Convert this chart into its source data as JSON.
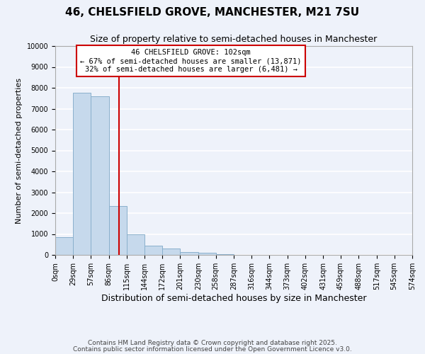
{
  "title": "46, CHELSFIELD GROVE, MANCHESTER, M21 7SU",
  "subtitle": "Size of property relative to semi-detached houses in Manchester",
  "bar_values": [
    850,
    7750,
    7600,
    2350,
    1000,
    450,
    300,
    120,
    100,
    30,
    0,
    0,
    0,
    0,
    0,
    0,
    0,
    0,
    0,
    0
  ],
  "bin_edges": [
    0,
    29,
    57,
    86,
    115,
    144,
    172,
    201,
    230,
    258,
    287,
    316,
    344,
    373,
    402,
    431,
    459,
    488,
    517,
    545,
    574
  ],
  "tick_labels": [
    "0sqm",
    "29sqm",
    "57sqm",
    "86sqm",
    "115sqm",
    "144sqm",
    "172sqm",
    "201sqm",
    "230sqm",
    "258sqm",
    "287sqm",
    "316sqm",
    "344sqm",
    "373sqm",
    "402sqm",
    "431sqm",
    "459sqm",
    "488sqm",
    "517sqm",
    "545sqm",
    "574sqm"
  ],
  "xlabel": "Distribution of semi-detached houses by size in Manchester",
  "ylabel": "Number of semi-detached properties",
  "ylim": [
    0,
    10000
  ],
  "yticks": [
    0,
    1000,
    2000,
    3000,
    4000,
    5000,
    6000,
    7000,
    8000,
    9000,
    10000
  ],
  "bar_color": "#c6d9ec",
  "bar_edge_color": "#8ab0cc",
  "bg_color": "#eef2fa",
  "grid_color": "#ffffff",
  "vline_x": 102,
  "vline_color": "#cc0000",
  "annotation_title": "46 CHELSFIELD GROVE: 102sqm",
  "annotation_line1": "← 67% of semi-detached houses are smaller (13,871)",
  "annotation_line2": "32% of semi-detached houses are larger (6,481) →",
  "annotation_box_color": "#ffffff",
  "annotation_box_edge": "#cc0000",
  "footer1": "Contains HM Land Registry data © Crown copyright and database right 2025.",
  "footer2": "Contains public sector information licensed under the Open Government Licence v3.0.",
  "title_fontsize": 11,
  "subtitle_fontsize": 9,
  "xlabel_fontsize": 9,
  "ylabel_fontsize": 8,
  "tick_fontsize": 7,
  "annotation_fontsize": 7.5,
  "footer_fontsize": 6.5
}
